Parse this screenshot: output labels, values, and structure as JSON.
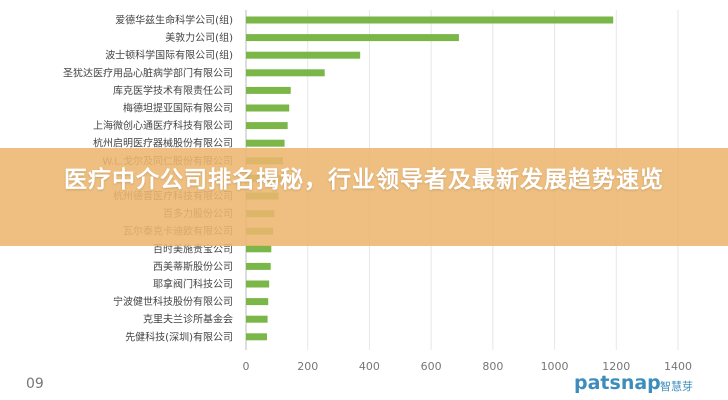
{
  "overlay_title": "医疗中介公司排名揭秘，行业领导者及最新发展趋势速览",
  "corner_label": "09",
  "brand": {
    "name": "patsnap",
    "sub": "智慧芽"
  },
  "colors": {
    "bar": "#7ab648",
    "banner": "#ecb66e"
  },
  "chart_data": {
    "type": "bar",
    "orientation": "horizontal",
    "categories": [
      "爱德华兹生命科学公司(组)",
      "美敦力公司(组)",
      "波士顿科学国际有限公司(组)",
      "圣犹达医疗用品心脏病学部门有限公司",
      "库克医学技术有限责任公司",
      "梅德坦提亚国际有限公司",
      "上海微创心通医疗科技有限公司",
      "杭州启明医疗器械股份有限公司",
      "W.L.戈尔及同仁股份有限公司",
      "",
      "杭州德晋医疗科技有限公司",
      "百多力股份公司",
      "瓦尔泰克卡迪欧有限公司",
      "百时美施贵宝公司",
      "西美蒂斯股份公司",
      "耶拿阀门科技公司",
      "宁波健世科技股份有限公司",
      "克里夫兰诊所基金会",
      "先健科技(深圳)有限公司"
    ],
    "values": [
      1190,
      690,
      370,
      255,
      145,
      140,
      135,
      125,
      120,
      115,
      105,
      92,
      88,
      82,
      80,
      75,
      72,
      70,
      68
    ],
    "xticks": [
      0,
      200,
      400,
      600,
      800,
      1000,
      1200,
      1400
    ],
    "xlim": [
      0,
      1400
    ],
    "grid": "vertical",
    "title": "",
    "xlabel": "",
    "ylabel": ""
  }
}
